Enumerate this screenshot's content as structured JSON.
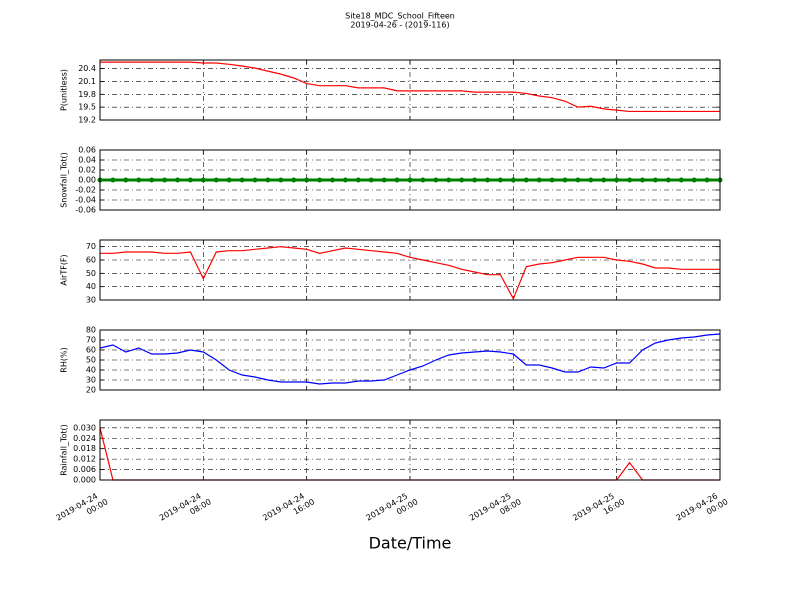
{
  "title": "Site18_MDC_School_Fifteen",
  "subtitle": "2019-04-26 - (2019-116)",
  "xlabel": "Date/Time",
  "chart_data": [
    {
      "type": "line",
      "ylabel": "P(unitless)",
      "color": "#ff0000",
      "grid": true,
      "x": [
        "2019-04-24 00:00",
        "2019-04-24 01:00",
        "2019-04-24 02:00",
        "2019-04-24 03:00",
        "2019-04-24 04:00",
        "2019-04-24 05:00",
        "2019-04-24 06:00",
        "2019-04-24 07:00",
        "2019-04-24 08:00",
        "2019-04-24 09:00",
        "2019-04-24 10:00",
        "2019-04-24 11:00",
        "2019-04-24 12:00",
        "2019-04-24 13:00",
        "2019-04-24 14:00",
        "2019-04-24 15:00",
        "2019-04-24 16:00",
        "2019-04-24 17:00",
        "2019-04-24 18:00",
        "2019-04-24 19:00",
        "2019-04-24 20:00",
        "2019-04-24 21:00",
        "2019-04-24 22:00",
        "2019-04-24 23:00",
        "2019-04-25 00:00",
        "2019-04-25 01:00",
        "2019-04-25 02:00",
        "2019-04-25 03:00",
        "2019-04-25 04:00",
        "2019-04-25 05:00",
        "2019-04-25 06:00",
        "2019-04-25 07:00",
        "2019-04-25 08:00",
        "2019-04-25 09:00",
        "2019-04-25 10:00",
        "2019-04-25 11:00",
        "2019-04-25 12:00",
        "2019-04-25 13:00",
        "2019-04-25 14:00",
        "2019-04-25 15:00",
        "2019-04-25 16:00",
        "2019-04-25 17:00",
        "2019-04-25 18:00",
        "2019-04-25 19:00",
        "2019-04-25 20:00",
        "2019-04-25 21:00",
        "2019-04-25 22:00",
        "2019-04-25 23:00",
        "2019-04-26 00:00"
      ],
      "values": [
        20.55,
        20.55,
        20.55,
        20.55,
        20.55,
        20.55,
        20.55,
        20.55,
        20.53,
        20.53,
        20.5,
        20.46,
        20.41,
        20.34,
        20.27,
        20.18,
        20.05,
        20.0,
        20.0,
        20.0,
        19.95,
        19.95,
        19.95,
        19.88,
        19.88,
        19.88,
        19.88,
        19.88,
        19.88,
        19.85,
        19.85,
        19.85,
        19.85,
        19.82,
        19.76,
        19.72,
        19.64,
        19.5,
        19.52,
        19.46,
        19.43,
        19.4,
        19.4,
        19.4,
        19.4,
        19.4,
        19.4,
        19.4,
        19.4
      ],
      "xlim": [
        "2019-04-24 00:00",
        "2019-04-26 00:00"
      ],
      "xticks": [
        "2019-04-24 00:00",
        "2019-04-24 08:00",
        "2019-04-24 16:00",
        "2019-04-25 00:00",
        "2019-04-25 08:00",
        "2019-04-25 16:00",
        "2019-04-26 00:00"
      ],
      "ylim": [
        19.2,
        20.6
      ],
      "yticks": [
        19.2,
        19.5,
        19.8,
        20.1,
        20.4
      ]
    },
    {
      "type": "line",
      "ylabel": "Snowfall_Tot()",
      "color": "#008000",
      "marker": true,
      "grid": true,
      "x": [
        "2019-04-24 00:00",
        "2019-04-24 01:00",
        "2019-04-24 02:00",
        "2019-04-24 03:00",
        "2019-04-24 04:00",
        "2019-04-24 05:00",
        "2019-04-24 06:00",
        "2019-04-24 07:00",
        "2019-04-24 08:00",
        "2019-04-24 09:00",
        "2019-04-24 10:00",
        "2019-04-24 11:00",
        "2019-04-24 12:00",
        "2019-04-24 13:00",
        "2019-04-24 14:00",
        "2019-04-24 15:00",
        "2019-04-24 16:00",
        "2019-04-24 17:00",
        "2019-04-24 18:00",
        "2019-04-24 19:00",
        "2019-04-24 20:00",
        "2019-04-24 21:00",
        "2019-04-24 22:00",
        "2019-04-24 23:00",
        "2019-04-25 00:00",
        "2019-04-25 01:00",
        "2019-04-25 02:00",
        "2019-04-25 03:00",
        "2019-04-25 04:00",
        "2019-04-25 05:00",
        "2019-04-25 06:00",
        "2019-04-25 07:00",
        "2019-04-25 08:00",
        "2019-04-25 09:00",
        "2019-04-25 10:00",
        "2019-04-25 11:00",
        "2019-04-25 12:00",
        "2019-04-25 13:00",
        "2019-04-25 14:00",
        "2019-04-25 15:00",
        "2019-04-25 16:00",
        "2019-04-25 17:00",
        "2019-04-25 18:00",
        "2019-04-25 19:00",
        "2019-04-25 20:00",
        "2019-04-25 21:00",
        "2019-04-25 22:00",
        "2019-04-25 23:00",
        "2019-04-26 00:00"
      ],
      "values": [
        0,
        0,
        0,
        0,
        0,
        0,
        0,
        0,
        0,
        0,
        0,
        0,
        0,
        0,
        0,
        0,
        0,
        0,
        0,
        0,
        0,
        0,
        0,
        0,
        0,
        0,
        0,
        0,
        0,
        0,
        0,
        0,
        0,
        0,
        0,
        0,
        0,
        0,
        0,
        0,
        0,
        0,
        0,
        0,
        0,
        0,
        0,
        0,
        0
      ],
      "xlim": [
        "2019-04-24 00:00",
        "2019-04-26 00:00"
      ],
      "xticks": [
        "2019-04-24 00:00",
        "2019-04-24 08:00",
        "2019-04-24 16:00",
        "2019-04-25 00:00",
        "2019-04-25 08:00",
        "2019-04-25 16:00",
        "2019-04-26 00:00"
      ],
      "ylim": [
        -0.06,
        0.06
      ],
      "yticks": [
        -0.06,
        -0.04,
        -0.02,
        {
          "value": 0,
          "label": "0.00"
        },
        0.02,
        0.04,
        0.06
      ]
    },
    {
      "type": "line",
      "ylabel": "AirTF(F)",
      "color": "#ff0000",
      "grid": true,
      "x": [
        "2019-04-24 00:00",
        "2019-04-24 01:00",
        "2019-04-24 02:00",
        "2019-04-24 03:00",
        "2019-04-24 04:00",
        "2019-04-24 05:00",
        "2019-04-24 06:00",
        "2019-04-24 07:00",
        "2019-04-24 08:00",
        "2019-04-24 09:00",
        "2019-04-24 10:00",
        "2019-04-24 11:00",
        "2019-04-24 12:00",
        "2019-04-24 13:00",
        "2019-04-24 14:00",
        "2019-04-24 15:00",
        "2019-04-24 16:00",
        "2019-04-24 17:00",
        "2019-04-24 18:00",
        "2019-04-24 19:00",
        "2019-04-24 20:00",
        "2019-04-24 21:00",
        "2019-04-24 22:00",
        "2019-04-24 23:00",
        "2019-04-25 00:00",
        "2019-04-25 01:00",
        "2019-04-25 02:00",
        "2019-04-25 03:00",
        "2019-04-25 04:00",
        "2019-04-25 05:00",
        "2019-04-25 06:00",
        "2019-04-25 07:00",
        "2019-04-25 08:00",
        "2019-04-25 09:00",
        "2019-04-25 10:00",
        "2019-04-25 11:00",
        "2019-04-25 12:00",
        "2019-04-25 13:00",
        "2019-04-25 14:00",
        "2019-04-25 15:00",
        "2019-04-25 16:00",
        "2019-04-25 17:00",
        "2019-04-25 18:00",
        "2019-04-25 19:00",
        "2019-04-25 20:00",
        "2019-04-25 21:00",
        "2019-04-25 22:00",
        "2019-04-25 23:00",
        "2019-04-26 00:00"
      ],
      "values": [
        65,
        65,
        66,
        66,
        66,
        65,
        65,
        66,
        46,
        66,
        67,
        67,
        68,
        69,
        70,
        69,
        68,
        65,
        67,
        69,
        68,
        67,
        66,
        65,
        62,
        60,
        58,
        56,
        53,
        51,
        49,
        49,
        31,
        55,
        57,
        58,
        60,
        62,
        62,
        62,
        60,
        59,
        57,
        54,
        54,
        53,
        53,
        53,
        53
      ],
      "xlim": [
        "2019-04-24 00:00",
        "2019-04-26 00:00"
      ],
      "xticks": [
        "2019-04-24 00:00",
        "2019-04-24 08:00",
        "2019-04-24 16:00",
        "2019-04-25 00:00",
        "2019-04-25 08:00",
        "2019-04-25 16:00",
        "2019-04-26 00:00"
      ],
      "ylim": [
        30,
        75
      ],
      "yticks": [
        30,
        40,
        50,
        60,
        70
      ]
    },
    {
      "type": "line",
      "ylabel": "RH(%)",
      "color": "#0000ff",
      "grid": true,
      "x": [
        "2019-04-24 00:00",
        "2019-04-24 01:00",
        "2019-04-24 02:00",
        "2019-04-24 03:00",
        "2019-04-24 04:00",
        "2019-04-24 05:00",
        "2019-04-24 06:00",
        "2019-04-24 07:00",
        "2019-04-24 08:00",
        "2019-04-24 09:00",
        "2019-04-24 10:00",
        "2019-04-24 11:00",
        "2019-04-24 12:00",
        "2019-04-24 13:00",
        "2019-04-24 14:00",
        "2019-04-24 15:00",
        "2019-04-24 16:00",
        "2019-04-24 17:00",
        "2019-04-24 18:00",
        "2019-04-24 19:00",
        "2019-04-24 20:00",
        "2019-04-24 21:00",
        "2019-04-24 22:00",
        "2019-04-24 23:00",
        "2019-04-25 00:00",
        "2019-04-25 01:00",
        "2019-04-25 02:00",
        "2019-04-25 03:00",
        "2019-04-25 04:00",
        "2019-04-25 05:00",
        "2019-04-25 06:00",
        "2019-04-25 07:00",
        "2019-04-25 08:00",
        "2019-04-25 09:00",
        "2019-04-25 10:00",
        "2019-04-25 11:00",
        "2019-04-25 12:00",
        "2019-04-25 13:00",
        "2019-04-25 14:00",
        "2019-04-25 15:00",
        "2019-04-25 16:00",
        "2019-04-25 17:00",
        "2019-04-25 18:00",
        "2019-04-25 19:00",
        "2019-04-25 20:00",
        "2019-04-25 21:00",
        "2019-04-25 22:00",
        "2019-04-25 23:00",
        "2019-04-26 00:00"
      ],
      "values": [
        62,
        65,
        58,
        62,
        56,
        56,
        57,
        60,
        58,
        50,
        40,
        35,
        33,
        30,
        28,
        28,
        28,
        26,
        27,
        27,
        29,
        29,
        30,
        35,
        40,
        44,
        50,
        55,
        57,
        58,
        59,
        58,
        56,
        45,
        45,
        42,
        38,
        38,
        43,
        42,
        47,
        47,
        60,
        67,
        70,
        72,
        73,
        75,
        76
      ],
      "xlim": [
        "2019-04-24 00:00",
        "2019-04-26 00:00"
      ],
      "xticks": [
        "2019-04-24 00:00",
        "2019-04-24 08:00",
        "2019-04-24 16:00",
        "2019-04-25 00:00",
        "2019-04-25 08:00",
        "2019-04-25 16:00",
        "2019-04-26 00:00"
      ],
      "ylim": [
        20,
        80
      ],
      "yticks": [
        20,
        30,
        40,
        50,
        60,
        70,
        80
      ]
    },
    {
      "type": "line",
      "ylabel": "Rainfall_Tot()",
      "color": "#ff0000",
      "grid": true,
      "show_xtick_labels": true,
      "x": [
        "2019-04-24 00:00",
        "2019-04-24 01:00",
        "2019-04-24 02:00",
        "2019-04-24 03:00",
        "2019-04-24 04:00",
        "2019-04-24 05:00",
        "2019-04-24 06:00",
        "2019-04-24 07:00",
        "2019-04-24 08:00",
        "2019-04-24 09:00",
        "2019-04-24 10:00",
        "2019-04-24 11:00",
        "2019-04-24 12:00",
        "2019-04-24 13:00",
        "2019-04-24 14:00",
        "2019-04-24 15:00",
        "2019-04-24 16:00",
        "2019-04-24 17:00",
        "2019-04-24 18:00",
        "2019-04-24 19:00",
        "2019-04-24 20:00",
        "2019-04-24 21:00",
        "2019-04-24 22:00",
        "2019-04-24 23:00",
        "2019-04-25 00:00",
        "2019-04-25 01:00",
        "2019-04-25 02:00",
        "2019-04-25 03:00",
        "2019-04-25 04:00",
        "2019-04-25 05:00",
        "2019-04-25 06:00",
        "2019-04-25 07:00",
        "2019-04-25 08:00",
        "2019-04-25 09:00",
        "2019-04-25 10:00",
        "2019-04-25 11:00",
        "2019-04-25 12:00",
        "2019-04-25 13:00",
        "2019-04-25 14:00",
        "2019-04-25 15:00",
        "2019-04-25 16:00",
        "2019-04-25 17:00",
        "2019-04-25 18:00",
        "2019-04-25 19:00",
        "2019-04-25 20:00",
        "2019-04-25 21:00",
        "2019-04-25 22:00",
        "2019-04-25 23:00",
        "2019-04-26 00:00"
      ],
      "values": [
        0.03,
        0,
        0,
        0,
        0,
        0,
        0,
        0,
        0,
        0,
        0,
        0,
        0,
        0,
        0,
        0,
        0,
        0,
        0,
        0,
        0,
        0,
        0,
        0,
        0,
        0,
        0,
        0,
        0,
        0,
        0,
        0,
        0,
        0,
        0,
        0,
        0,
        0,
        0,
        0,
        0,
        0.01,
        0,
        0,
        0,
        0,
        0,
        0,
        0
      ],
      "xlim": [
        "2019-04-24 00:00",
        "2019-04-26 00:00"
      ],
      "xticks": [
        "2019-04-24 00:00",
        "2019-04-24 08:00",
        "2019-04-24 16:00",
        "2019-04-25 00:00",
        "2019-04-25 08:00",
        "2019-04-25 16:00",
        "2019-04-26 00:00"
      ],
      "ylim": [
        0,
        0.0345
      ],
      "yticks": [
        {
          "value": 0,
          "label": "0.000"
        },
        0.006,
        0.012,
        0.018,
        0.024,
        {
          "value": 0.03,
          "label": "0.030"
        }
      ]
    }
  ]
}
